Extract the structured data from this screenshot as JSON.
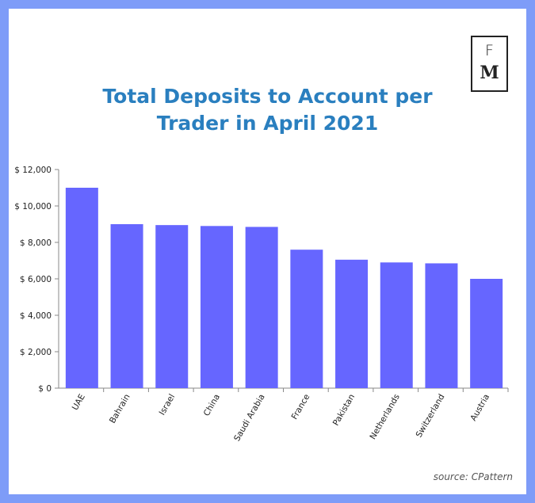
{
  "logo": {
    "letter_top": "F",
    "letter_bottom": "M"
  },
  "title_line1": "Total Deposits to Account per",
  "title_line2": "Trader in April 2021",
  "source": "source: CPattern",
  "colors": {
    "bar": "#6666ff",
    "title": "#2a7fbf",
    "frame": "#7e9cf8"
  },
  "chart_data": {
    "type": "bar",
    "title": "Total Deposits to Account per Trader in April 2021",
    "categories": [
      "UAE",
      "Bahrain",
      "Israel",
      "China",
      "Saudi Arabia",
      "France",
      "Pakistan",
      "Netherlands",
      "Switzerland",
      "Austria"
    ],
    "values": [
      11000,
      9000,
      8950,
      8900,
      8850,
      7600,
      7050,
      6900,
      6850,
      6000
    ],
    "ylim": [
      0,
      12000
    ],
    "yticks": [
      0,
      2000,
      4000,
      6000,
      8000,
      10000,
      12000
    ],
    "ytick_labels": [
      "$ 0",
      "$ 2,000",
      "$ 4,000",
      "$ 6,000",
      "$ 8,000",
      "$ 10,000",
      "$ 12,000"
    ],
    "xlabel": "",
    "ylabel": "",
    "grid": false,
    "legend": "none"
  }
}
